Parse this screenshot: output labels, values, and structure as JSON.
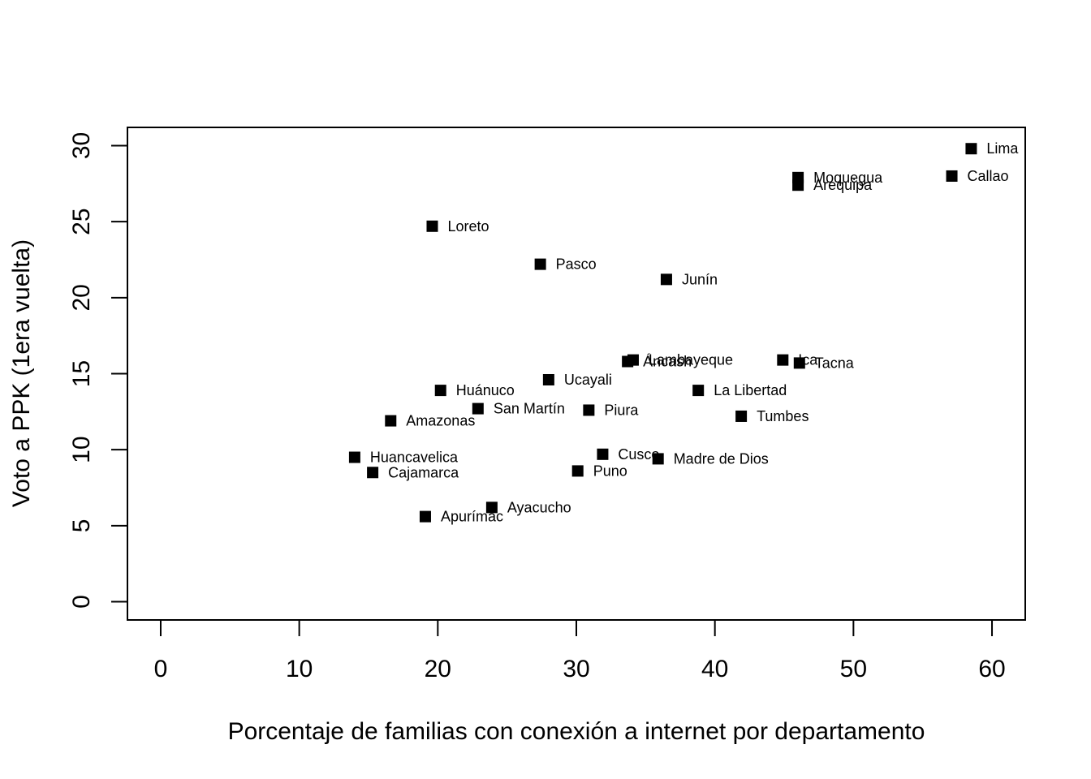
{
  "chart_data": {
    "type": "scatter",
    "title": "",
    "xlabel": "Porcentaje de familias con conexión a internet por departamento",
    "ylabel": "Voto a PPK (1era vuelta)",
    "xlim": [
      -2.4,
      62.4
    ],
    "ylim": [
      -1.2,
      31.2
    ],
    "xticks": [
      0,
      10,
      20,
      30,
      40,
      50,
      60
    ],
    "yticks": [
      0,
      5,
      10,
      15,
      20,
      25,
      30
    ],
    "grid": false,
    "legend": "none",
    "marker": "filled-square",
    "marker_color": "#000000",
    "points": [
      {
        "label": "Lima",
        "x": 58.5,
        "y": 29.8
      },
      {
        "label": "Callao",
        "x": 57.1,
        "y": 28.0
      },
      {
        "label": "Moquegua",
        "x": 46.0,
        "y": 27.9
      },
      {
        "label": "Arequipa",
        "x": 46.0,
        "y": 27.4
      },
      {
        "label": "Loreto",
        "x": 19.6,
        "y": 24.7
      },
      {
        "label": "Pasco",
        "x": 27.4,
        "y": 22.2
      },
      {
        "label": "Junín",
        "x": 36.5,
        "y": 21.2
      },
      {
        "label": "Lambayeque",
        "x": 34.1,
        "y": 15.9
      },
      {
        "label": "Áncash",
        "x": 33.7,
        "y": 15.8
      },
      {
        "label": "Ica",
        "x": 44.9,
        "y": 15.9
      },
      {
        "label": "Tacna",
        "x": 46.1,
        "y": 15.7
      },
      {
        "label": "Ucayali",
        "x": 28.0,
        "y": 14.6
      },
      {
        "label": "Huánuco",
        "x": 20.2,
        "y": 13.9
      },
      {
        "label": "La Libertad",
        "x": 38.8,
        "y": 13.9
      },
      {
        "label": "San Martín",
        "x": 22.9,
        "y": 12.7
      },
      {
        "label": "Piura",
        "x": 30.9,
        "y": 12.6
      },
      {
        "label": "Tumbes",
        "x": 41.9,
        "y": 12.2
      },
      {
        "label": "Amazonas",
        "x": 16.6,
        "y": 11.9
      },
      {
        "label": "Cusco",
        "x": 31.9,
        "y": 9.7
      },
      {
        "label": "Huancavelica",
        "x": 14.0,
        "y": 9.5
      },
      {
        "label": "Madre de Dios",
        "x": 35.9,
        "y": 9.4
      },
      {
        "label": "Cajamarca",
        "x": 15.3,
        "y": 8.5
      },
      {
        "label": "Puno",
        "x": 30.1,
        "y": 8.6
      },
      {
        "label": "Ayacucho",
        "x": 23.9,
        "y": 6.2
      },
      {
        "label": "Apurímac",
        "x": 19.1,
        "y": 5.6
      }
    ]
  }
}
